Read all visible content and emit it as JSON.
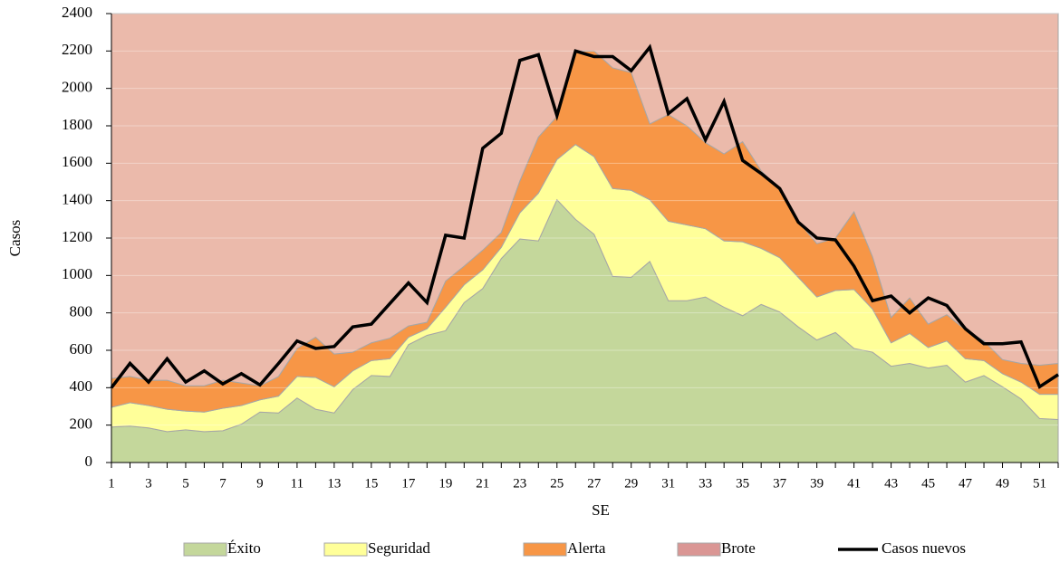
{
  "chart_data": {
    "type": "stacked-area-line",
    "x_label": "SE",
    "y_label": "Casos",
    "categories": [
      1,
      null,
      3,
      null,
      5,
      null,
      7,
      null,
      9,
      null,
      11,
      null,
      13,
      null,
      15,
      null,
      17,
      null,
      19,
      null,
      21,
      null,
      23,
      null,
      25,
      null,
      27,
      null,
      29,
      null,
      31,
      null,
      33,
      null,
      35,
      null,
      37,
      null,
      39,
      null,
      41,
      null,
      43,
      null,
      45,
      null,
      47,
      null,
      49,
      null,
      51,
      null
    ],
    "ylim": [
      0,
      2400
    ],
    "yticks": [
      0,
      200,
      400,
      600,
      800,
      1000,
      1200,
      1400,
      1600,
      1800,
      2000,
      2200,
      2400
    ],
    "grid": true,
    "legend": "bottom",
    "series": [
      {
        "name": "Éxito",
        "color": "#c4d79b",
        "kind": "area",
        "values": [
          190,
          195,
          185,
          165,
          175,
          165,
          170,
          205,
          270,
          265,
          345,
          285,
          265,
          390,
          465,
          460,
          630,
          680,
          705,
          855,
          930,
          1090,
          1195,
          1185,
          1405,
          1300,
          1220,
          995,
          990,
          1075,
          865,
          865,
          885,
          830,
          785,
          845,
          805,
          725,
          655,
          695,
          610,
          590,
          515,
          530,
          505,
          520,
          430,
          465,
          405,
          340,
          235,
          230
        ]
      },
      {
        "name": "Seguridad",
        "color": "#ffff99",
        "kind": "area",
        "values": [
          105,
          125,
          120,
          120,
          100,
          105,
          120,
          100,
          65,
          90,
          115,
          170,
          140,
          100,
          80,
          95,
          40,
          35,
          125,
          95,
          100,
          60,
          140,
          255,
          215,
          400,
          415,
          470,
          465,
          330,
          425,
          405,
          365,
          355,
          395,
          300,
          290,
          265,
          230,
          225,
          315,
          230,
          125,
          160,
          110,
          130,
          125,
          80,
          70,
          90,
          130,
          135
        ]
      },
      {
        "name": "Alerta",
        "color": "#f79646",
        "kind": "area",
        "values": [
          155,
          140,
          135,
          155,
          135,
          140,
          150,
          120,
          75,
          105,
          150,
          215,
          175,
          100,
          95,
          110,
          60,
          35,
          140,
          100,
          105,
          80,
          170,
          300,
          230,
          500,
          565,
          645,
          630,
          405,
          570,
          530,
          460,
          465,
          535,
          415,
          365,
          300,
          285,
          280,
          415,
          280,
          135,
          190,
          125,
          140,
          155,
          105,
          75,
          100,
          155,
          165
        ]
      },
      {
        "name": "Brote",
        "color": "#ebbaab",
        "legend_color": "#da9694",
        "kind": "area",
        "values": [
          1950,
          1940,
          1960,
          1960,
          1990,
          1990,
          1960,
          1975,
          1990,
          1940,
          1790,
          1730,
          1820,
          1810,
          1760,
          1735,
          1670,
          1650,
          1430,
          1350,
          1265,
          1170,
          895,
          660,
          550,
          200,
          200,
          290,
          315,
          590,
          540,
          600,
          690,
          750,
          685,
          840,
          940,
          1110,
          1230,
          1200,
          1060,
          1300,
          1625,
          1520,
          1660,
          1610,
          1690,
          1750,
          1850,
          1870,
          1880,
          1870
        ]
      },
      {
        "name": "Casos nuevos",
        "color": "#000000",
        "kind": "line",
        "values": [
          400,
          530,
          430,
          555,
          430,
          490,
          420,
          475,
          415,
          530,
          650,
          610,
          620,
          725,
          740,
          850,
          960,
          855,
          1215,
          1200,
          1680,
          1760,
          2150,
          2180,
          1855,
          2200,
          2170,
          2170,
          2095,
          2220,
          1865,
          1945,
          1725,
          1930,
          1615,
          1545,
          1465,
          1285,
          1200,
          1190,
          1050,
          865,
          890,
          800,
          880,
          840,
          715,
          635,
          635,
          645,
          405,
          470
        ]
      }
    ]
  }
}
